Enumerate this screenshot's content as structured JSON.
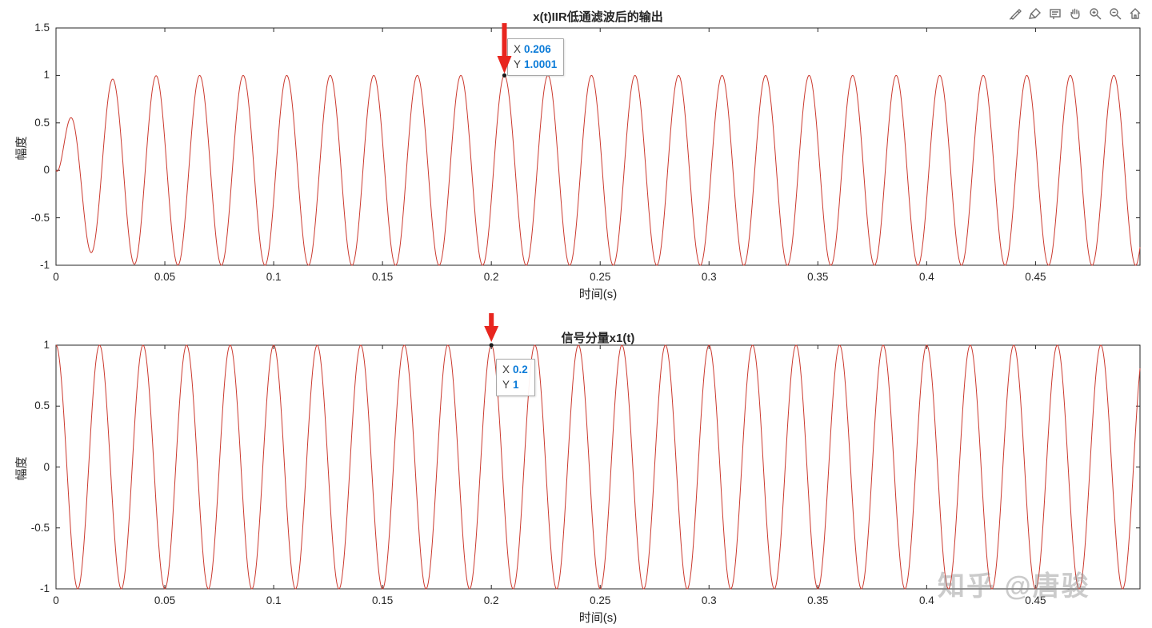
{
  "watermark": "知乎 @唐骏",
  "toolbar": {
    "buttons": [
      {
        "id": "export"
      },
      {
        "id": "brush"
      },
      {
        "id": "datatips"
      },
      {
        "id": "pan"
      },
      {
        "id": "zoom-in"
      },
      {
        "id": "zoom-out"
      },
      {
        "id": "restore-view"
      }
    ]
  },
  "chart_data": [
    {
      "type": "line",
      "title": "x(t)IIR低通滤波后的输出",
      "xlabel": "时间(s)",
      "ylabel": "幅度",
      "xlim": [
        0,
        0.498
      ],
      "ylim": [
        -1,
        1.5
      ],
      "x_ticks": [
        "0",
        "0.05",
        "0.1",
        "0.15",
        "0.2",
        "0.25",
        "0.3",
        "0.35",
        "0.4",
        "0.45"
      ],
      "y_ticks": [
        "-1",
        "-0.5",
        "0",
        "0.5",
        "1",
        "1.5"
      ],
      "grid": false,
      "line_color": "#cb392e",
      "series": [
        {
          "name": "IIR lowpass filtered output",
          "model": "transient_cosine",
          "freq_hz": 50,
          "amplitude": 1,
          "peak_delay_s": 0.006,
          "rise_tau_s": 0.008,
          "description": "50 Hz cosine with startup transient: y=(1-exp(-t/0.008))*cos(2*pi*50*(t-0.006)); steady-state peaks at 1, first peak ~0.53 near t=0.006, first trough ~-0.86"
        }
      ],
      "datatip": {
        "x_label": "X",
        "x_value": "0.206",
        "y_label": "Y",
        "y_value": "1.0001",
        "point": [
          0.206,
          1.0001
        ]
      }
    },
    {
      "type": "line",
      "title": "信号分量x1(t)",
      "xlabel": "时间(s)",
      "ylabel": "幅度",
      "xlim": [
        0,
        0.498
      ],
      "ylim": [
        -1,
        1
      ],
      "x_ticks": [
        "0",
        "0.05",
        "0.1",
        "0.15",
        "0.2",
        "0.25",
        "0.3",
        "0.35",
        "0.4",
        "0.45"
      ],
      "y_ticks": [
        "-1",
        "-0.5",
        "0",
        "0.5",
        "1"
      ],
      "grid": false,
      "line_color": "#cb392e",
      "series": [
        {
          "name": "x1(t)",
          "model": "cosine",
          "freq_hz": 50,
          "amplitude": 1,
          "description": "y = cos(2*pi*50*t); peaks of 1 every 0.02 s starting at t=0"
        }
      ],
      "datatip": {
        "x_label": "X",
        "x_value": "0.2",
        "y_label": "Y",
        "y_value": "1",
        "point": [
          0.2,
          1
        ]
      }
    }
  ]
}
